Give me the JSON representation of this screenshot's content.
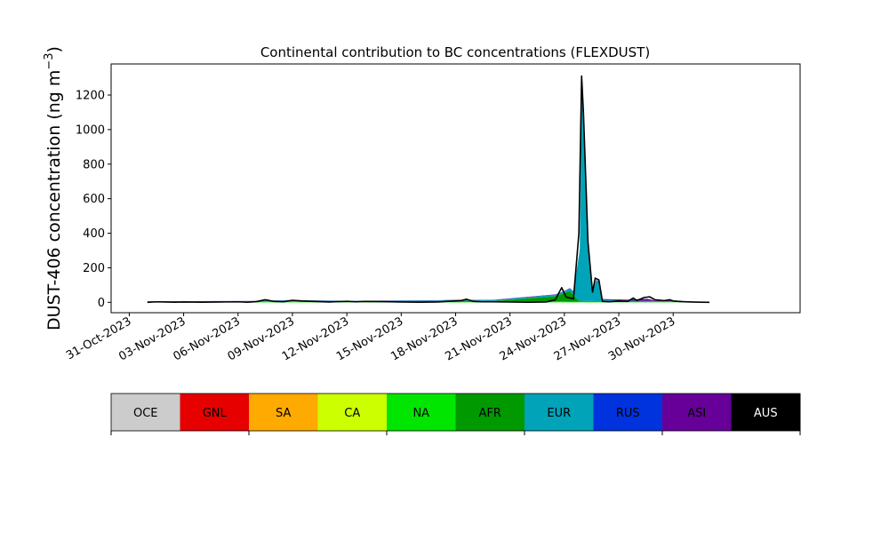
{
  "chart_data": {
    "type": "area",
    "title": "Continental contribution to BC concentrations (FLEXDUST)",
    "ylabel_main": "DUST-406 concentration (ng m",
    "ylabel_sup": "−3",
    "ylabel_tail": ")",
    "xlabel": "",
    "x_axis": {
      "type": "date",
      "min": "2023-10-30",
      "max": "2023-12-07"
    },
    "ylim": [
      -60,
      1380
    ],
    "y_ticks": [
      0,
      200,
      400,
      600,
      800,
      1000,
      1200
    ],
    "y_tick_labels": [
      "0",
      "200",
      "400",
      "600",
      "800",
      "1000",
      "1200"
    ],
    "x_ticks": [
      "2023-10-31",
      "2023-11-03",
      "2023-11-06",
      "2023-11-09",
      "2023-11-12",
      "2023-11-15",
      "2023-11-18",
      "2023-11-21",
      "2023-11-24",
      "2023-11-27",
      "2023-11-30"
    ],
    "x_tick_labels": [
      "31-Oct-2023",
      "03-Nov-2023",
      "06-Nov-2023",
      "09-Nov-2023",
      "12-Nov-2023",
      "15-Nov-2023",
      "18-Nov-2023",
      "21-Nov-2023",
      "24-Nov-2023",
      "27-Nov-2023",
      "30-Nov-2023"
    ],
    "grid": false,
    "legend_position": "below",
    "categories": [
      "OCE",
      "GNL",
      "SA",
      "CA",
      "NA",
      "AFR",
      "EUR",
      "RUS",
      "ASI",
      "AUS"
    ],
    "colors": [
      "#cccccc",
      "#e60000",
      "#ffaa00",
      "#ccff00",
      "#00e600",
      "#009900",
      "#00a3b8",
      "#0033dd",
      "#660099",
      "#000000"
    ],
    "legend_text_colors": [
      "#000000",
      "#000000",
      "#000000",
      "#000000",
      "#000000",
      "#000000",
      "#000000",
      "#000000",
      "#000000",
      "#ffffff"
    ],
    "series": [
      {
        "name": "NA",
        "values": [
          [
            "2023-11-01",
            1
          ],
          [
            "2023-11-05",
            2
          ],
          [
            "2023-11-09",
            3
          ],
          [
            "2023-11-12",
            2
          ],
          [
            "2023-11-18",
            4
          ],
          [
            "2023-11-24",
            5
          ],
          [
            "2023-11-27",
            1
          ],
          [
            "2023-12-01",
            1
          ]
        ]
      },
      {
        "name": "AFR",
        "values": [
          [
            "2023-11-01",
            2
          ],
          [
            "2023-11-09",
            3
          ],
          [
            "2023-11-17",
            3
          ],
          [
            "2023-11-18",
            6
          ],
          [
            "2023-11-20",
            2
          ],
          [
            "2023-11-23.5",
            30
          ],
          [
            "2023-11-24.3",
            60
          ],
          [
            "2023-11-24.8",
            5
          ],
          [
            "2023-11-27",
            3
          ],
          [
            "2023-12-01",
            1
          ]
        ]
      },
      {
        "name": "EUR",
        "values": [
          [
            "2023-11-01",
            2
          ],
          [
            "2023-11-07",
            2
          ],
          [
            "2023-11-08",
            5
          ],
          [
            "2023-11-09",
            6
          ],
          [
            "2023-11-12",
            3
          ],
          [
            "2023-11-18",
            4
          ],
          [
            "2023-11-24",
            10
          ],
          [
            "2023-11-24.5",
            20
          ],
          [
            "2023-11-24.85",
            300
          ],
          [
            "2023-11-24.95",
            1220
          ],
          [
            "2023-11-25.1",
            1000
          ],
          [
            "2023-11-25.3",
            300
          ],
          [
            "2023-11-25.55",
            60
          ],
          [
            "2023-11-25.75",
            120
          ],
          [
            "2023-11-25.95",
            110
          ],
          [
            "2023-11-26.1",
            10
          ],
          [
            "2023-11-27",
            8
          ],
          [
            "2023-11-28",
            5
          ],
          [
            "2023-11-30",
            4
          ],
          [
            "2023-12-01",
            2
          ]
        ]
      },
      {
        "name": "ASI",
        "values": [
          [
            "2023-11-01",
            1
          ],
          [
            "2023-11-15",
            1
          ],
          [
            "2023-11-25",
            2
          ],
          [
            "2023-11-27.5",
            5
          ],
          [
            "2023-11-28",
            10
          ],
          [
            "2023-11-28.6",
            12
          ],
          [
            "2023-11-29",
            3
          ],
          [
            "2023-11-29.6",
            5
          ],
          [
            "2023-11-30",
            4
          ],
          [
            "2023-12-01",
            1
          ]
        ]
      }
    ],
    "total": [
      [
        "2023-11-01",
        0
      ],
      [
        "2023-11-01.5",
        3
      ],
      [
        "2023-11-02",
        2
      ],
      [
        "2023-11-02.5",
        1
      ],
      [
        "2023-11-03",
        2
      ],
      [
        "2023-11-04",
        1
      ],
      [
        "2023-11-05",
        2
      ],
      [
        "2023-11-06",
        3
      ],
      [
        "2023-11-06.5",
        1
      ],
      [
        "2023-11-07",
        4
      ],
      [
        "2023-11-07.5",
        15
      ],
      [
        "2023-11-08",
        5
      ],
      [
        "2023-11-08.5",
        3
      ],
      [
        "2023-11-09",
        12
      ],
      [
        "2023-11-09.5",
        8
      ],
      [
        "2023-11-10",
        6
      ],
      [
        "2023-11-11",
        2
      ],
      [
        "2023-11-12",
        6
      ],
      [
        "2023-11-12.5",
        3
      ],
      [
        "2023-11-13",
        5
      ],
      [
        "2023-11-14",
        4
      ],
      [
        "2023-11-15",
        2
      ],
      [
        "2023-11-16",
        1
      ],
      [
        "2023-11-17",
        2
      ],
      [
        "2023-11-18",
        8
      ],
      [
        "2023-11-18.3",
        10
      ],
      [
        "2023-11-18.6",
        18
      ],
      [
        "2023-11-19",
        5
      ],
      [
        "2023-11-19.5",
        3
      ],
      [
        "2023-11-20",
        3
      ],
      [
        "2023-11-21",
        2
      ],
      [
        "2023-11-22",
        1
      ],
      [
        "2023-11-23",
        2
      ],
      [
        "2023-11-23.5",
        15
      ],
      [
        "2023-11-23.85",
        85
      ],
      [
        "2023-11-24.1",
        30
      ],
      [
        "2023-11-24.5",
        20
      ],
      [
        "2023-11-24.8",
        400
      ],
      [
        "2023-11-24.95",
        1310
      ],
      [
        "2023-11-25.05",
        1100
      ],
      [
        "2023-11-25.3",
        350
      ],
      [
        "2023-11-25.55",
        60
      ],
      [
        "2023-11-25.7",
        140
      ],
      [
        "2023-11-25.9",
        130
      ],
      [
        "2023-11-26.1",
        5
      ],
      [
        "2023-11-26.5",
        3
      ],
      [
        "2023-11-27",
        8
      ],
      [
        "2023-11-27.5",
        6
      ],
      [
        "2023-11-27.8",
        25
      ],
      [
        "2023-11-28",
        10
      ],
      [
        "2023-11-28.4",
        28
      ],
      [
        "2023-11-28.7",
        32
      ],
      [
        "2023-11-29",
        15
      ],
      [
        "2023-11-29.5",
        10
      ],
      [
        "2023-11-29.8",
        15
      ],
      [
        "2023-11-30",
        8
      ],
      [
        "2023-11-30.5",
        4
      ],
      [
        "2023-12-01",
        2
      ],
      [
        "2023-12-01.5",
        1
      ],
      [
        "2023-12-02",
        0
      ]
    ]
  }
}
